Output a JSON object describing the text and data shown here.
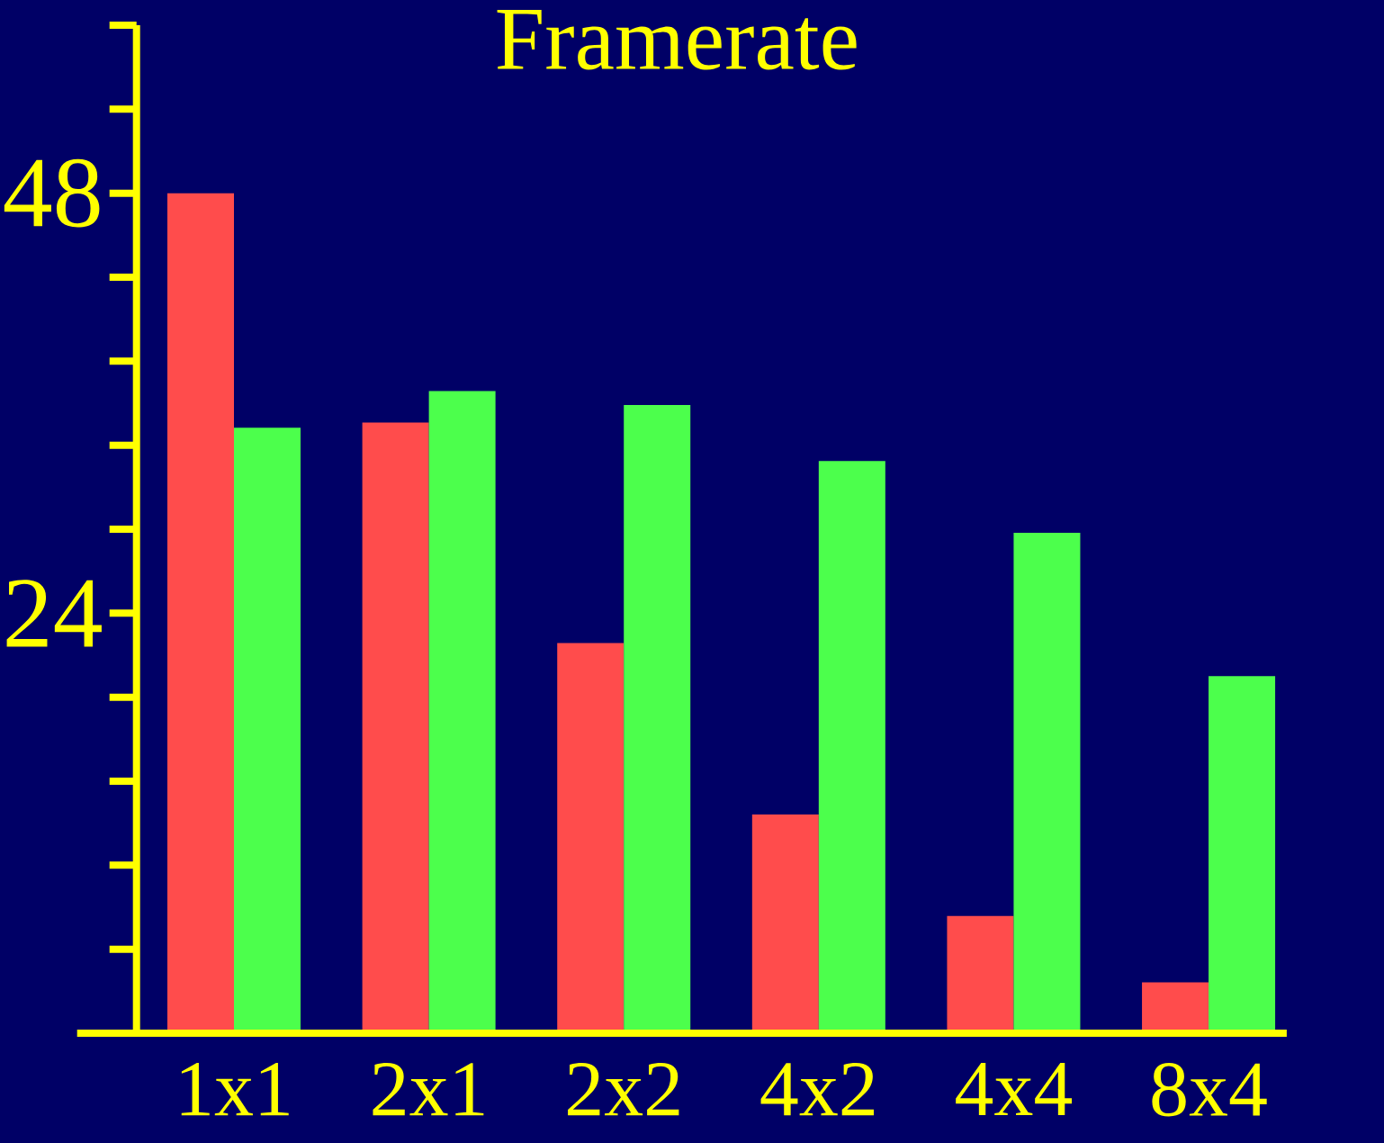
{
  "chart_data": {
    "type": "bar",
    "title": "Framerate",
    "categories": [
      "1x1",
      "2x1",
      "2x2",
      "4x2",
      "4x4",
      "8x4"
    ],
    "series": [
      {
        "color": "#ff4c4c",
        "values": [
          48.0,
          34.9,
          22.3,
          12.5,
          6.7,
          2.9
        ]
      },
      {
        "color": "#4cff4c",
        "values": [
          34.6,
          36.7,
          35.9,
          32.7,
          28.6,
          20.4
        ]
      }
    ],
    "ylim": [
      0,
      57.6
    ],
    "yticks": [
      {
        "value": 0,
        "label": null
      },
      {
        "value": 4.8,
        "label": null
      },
      {
        "value": 9.6,
        "label": null
      },
      {
        "value": 14.4,
        "label": null
      },
      {
        "value": 19.2,
        "label": null
      },
      24,
      {
        "value": 28.8,
        "label": null
      },
      {
        "value": 33.6,
        "label": null
      },
      {
        "value": 38.4,
        "label": null
      },
      {
        "value": 43.2,
        "label": null
      },
      48,
      {
        "value": 52.8,
        "label": null
      },
      {
        "value": 57.6,
        "label": null
      }
    ],
    "grid": false
  }
}
